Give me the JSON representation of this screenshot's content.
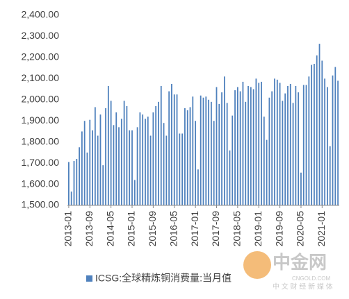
{
  "chart_data": {
    "type": "bar",
    "legend": "ICSG:全球精炼铜消费量:当月值",
    "watermark": [
      "中金网",
      "CNGOLD.COM",
      "中 文 财 经 新 媒 体"
    ],
    "color": "#4f81bd",
    "categories": [
      "2013-01",
      null,
      null,
      null,
      null,
      null,
      null,
      null,
      "2013-09",
      null,
      null,
      null,
      null,
      null,
      null,
      null,
      "2014-05",
      null,
      null,
      null,
      null,
      null,
      null,
      null,
      "2015-01",
      null,
      null,
      null,
      null,
      null,
      null,
      null,
      "2015-09",
      null,
      null,
      null,
      null,
      null,
      null,
      null,
      "2016-05",
      null,
      null,
      null,
      null,
      null,
      null,
      null,
      "2017-01",
      null,
      null,
      null,
      null,
      null,
      null,
      null,
      "2017-09",
      null,
      null,
      null,
      null,
      null,
      null,
      null,
      "2018-05",
      null,
      null,
      null,
      null,
      null,
      null,
      null,
      "2019-01",
      null,
      null,
      null,
      null,
      null,
      null,
      null,
      "2019-09",
      null,
      null,
      null,
      null,
      null,
      null,
      null,
      "2020-05",
      null,
      null,
      null,
      null,
      null,
      null,
      null,
      "2021-01",
      null,
      null,
      null,
      null,
      null,
      null
    ],
    "values": [
      1705,
      1565,
      1710,
      1720,
      1775,
      1850,
      1900,
      1750,
      1905,
      1855,
      1965,
      1830,
      1930,
      1690,
      1960,
      2065,
      1995,
      1880,
      1940,
      1870,
      1910,
      1995,
      1970,
      1855,
      1855,
      1620,
      1870,
      1940,
      1930,
      1910,
      1920,
      1830,
      1940,
      1970,
      1990,
      2065,
      1890,
      1830,
      2040,
      2075,
      2025,
      2025,
      1840,
      1840,
      1960,
      1950,
      1965,
      2015,
      1900,
      1670,
      2020,
      2010,
      2015,
      2000,
      1990,
      1900,
      2060,
      1980,
      2035,
      2110,
      1985,
      1760,
      1925,
      2045,
      2060,
      2040,
      2085,
      1990,
      2065,
      2060,
      2050,
      2100,
      2080,
      2085,
      1920,
      1810,
      2010,
      2040,
      2100,
      2095,
      2080,
      1995,
      2030,
      2065,
      2075,
      1985,
      2065,
      2035,
      1655,
      2070,
      2070,
      2110,
      2165,
      2170,
      2210,
      2265,
      2185,
      2100,
      2060,
      1780,
      2115,
      2155,
      2090
    ],
    "ylim": [
      1500,
      2400
    ],
    "yticks": [
      {
        "value": 1500,
        "label": "1,500.00"
      },
      {
        "value": 1600,
        "label": "1,600.00"
      },
      {
        "value": 1700,
        "label": "1,700.00"
      },
      {
        "value": 1800,
        "label": "1,800.00"
      },
      {
        "value": 1900,
        "label": "1,900.00"
      },
      {
        "value": 2000,
        "label": "2,000.00"
      },
      {
        "value": 2100,
        "label": "2,100.00"
      },
      {
        "value": 2200,
        "label": "2,200.00"
      },
      {
        "value": 2300,
        "label": "2,300.00"
      },
      {
        "value": 2400,
        "label": "2,400.00"
      }
    ],
    "grid": false
  }
}
